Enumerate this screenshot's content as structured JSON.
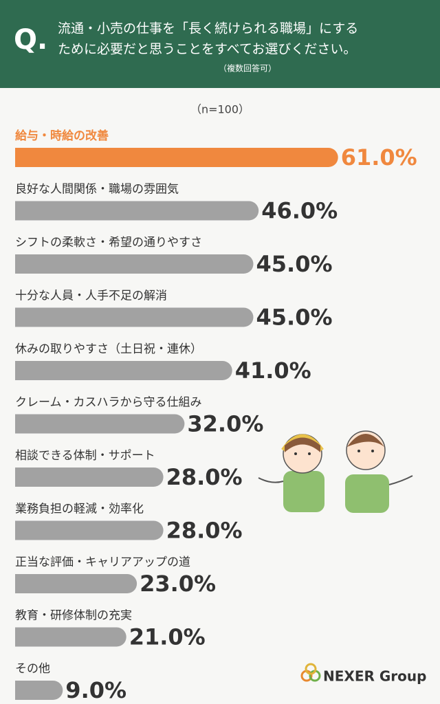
{
  "chart_data": {
    "type": "hbar",
    "badge": "Q.",
    "question": [
      "流通・小売の仕事を「長く続けられる職場」にする",
      "ために必要だと思うことをすべてお選びください。"
    ],
    "note": "（複数回答可）",
    "subtitle": "（n=100）",
    "categories": [
      "給与・時給の改善",
      "良好な人間関係・職場の雰囲気",
      "シフトの柔軟さ・希望の通りやすさ",
      "十分な人員・人手不足の解消",
      "休みの取りやすさ（土日祝・連休）",
      "クレーム・カスハラから守る仕組み",
      "相談できる体制・サポート",
      "業務負担の軽減・効率化",
      "正当な評価・キャリアアップの道",
      "教育・研修体制の充実",
      "その他"
    ],
    "values": [
      61,
      46,
      45,
      45,
      41,
      32,
      28,
      28,
      23,
      21,
      9
    ],
    "value_labels": [
      "61.0%",
      "46.0%",
      "45.0%",
      "45.0%",
      "41.0%",
      "32.0%",
      "28.0%",
      "28.0%",
      "23.0%",
      "21.0%",
      "9.0%"
    ],
    "colors": [
      "#f0883e",
      "#a2a2a2",
      "#a2a2a2",
      "#a2a2a2",
      "#a2a2a2",
      "#a2a2a2",
      "#a2a2a2",
      "#a2a2a2",
      "#a2a2a2",
      "#a2a2a2",
      "#a2a2a2"
    ],
    "highlight_text_color": "#f0883e",
    "logo": "NEXER Group"
  }
}
